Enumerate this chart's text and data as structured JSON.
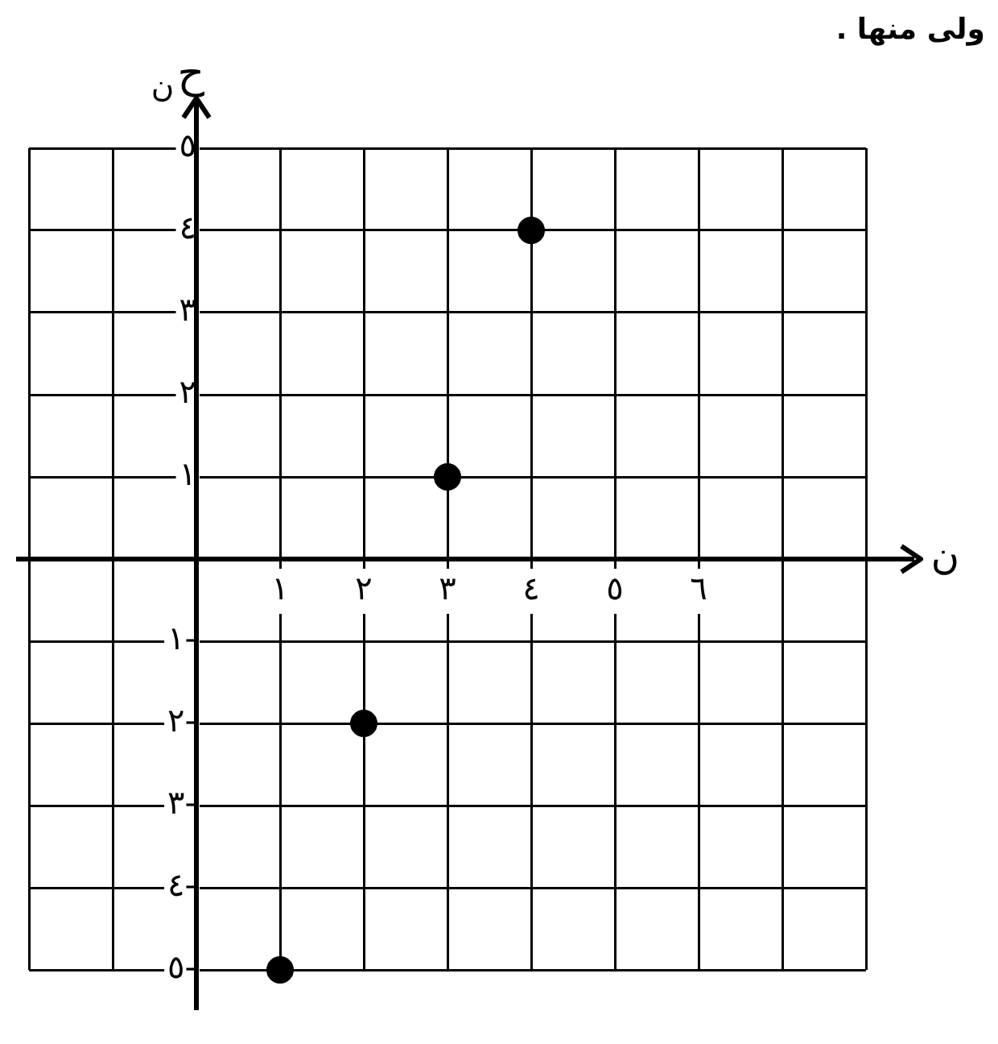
{
  "chart_data": {
    "type": "scatter",
    "xlabel": "ن",
    "ylabel": "ح$_{ن}$",
    "annotations": [
      "ولى منها ."
    ],
    "x": [
      1,
      2,
      3,
      4
    ],
    "series": [
      {
        "color": "#000000",
        "values": [
          -5,
          -2,
          1,
          4
        ]
      }
    ],
    "xlim": [
      -2,
      8
    ],
    "ylim": [
      -5,
      5
    ],
    "xticks": [
      {
        "value": -2,
        "label": null
      },
      {
        "value": -1,
        "label": null
      },
      {
        "value": 0,
        "label": null
      },
      {
        "value": 1,
        "label": "١"
      },
      {
        "value": 2,
        "label": "٢"
      },
      {
        "value": 3,
        "label": "٣"
      },
      {
        "value": 4,
        "label": "٤"
      },
      {
        "value": 5,
        "label": "٥"
      },
      {
        "value": 6,
        "label": "٦"
      },
      {
        "value": 7,
        "label": null
      },
      {
        "value": 8,
        "label": null
      }
    ],
    "yticks": [
      {
        "value": -5,
        "label": "٥-"
      },
      {
        "value": -4,
        "label": "٤-"
      },
      {
        "value": -3,
        "label": "٣-"
      },
      {
        "value": -2,
        "label": "٢-"
      },
      {
        "value": -1,
        "label": "١-"
      },
      {
        "value": 0,
        "label": null
      },
      {
        "value": 1,
        "label": "١"
      },
      {
        "value": 2,
        "label": "٢"
      },
      {
        "value": 3,
        "label": "٣"
      },
      {
        "value": 4,
        "label": "٤"
      },
      {
        "value": 5,
        "label": "٥"
      }
    ],
    "grid": true,
    "legend": false,
    "marker": "circle"
  }
}
